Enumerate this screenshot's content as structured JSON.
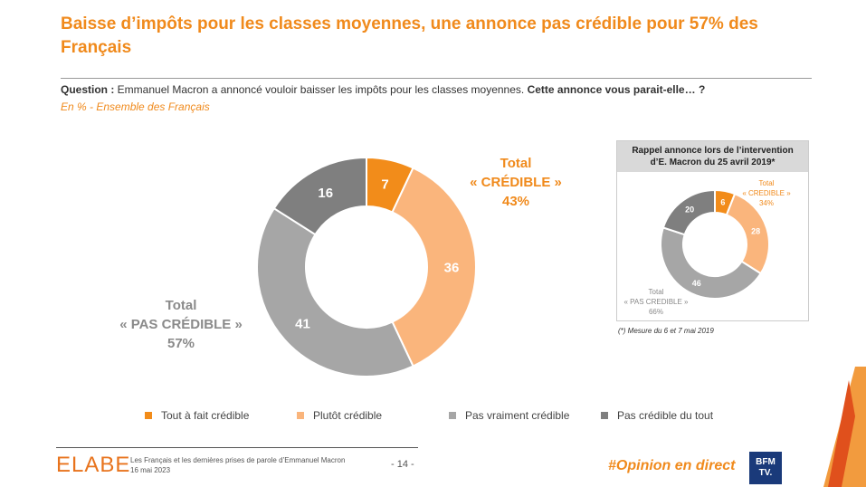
{
  "title": "Baisse d’impôts pour les classes moyennes, une annonce pas crédible pour 57% des Français",
  "question": {
    "label": "Question :",
    "text": " Emmanuel Macron a annoncé vouloir baisser les impôts pour les classes moyennes. ",
    "bold": "Cette annonce vous parait-elle… ?"
  },
  "subtitle": "En % - Ensemble des Français",
  "chart_data": [
    {
      "type": "pie",
      "variant": "donut",
      "categories": [
        "Tout à fait crédible",
        "Plutôt crédible",
        "Pas vraiment crédible",
        "Pas crédible du tout"
      ],
      "values": [
        7,
        36,
        41,
        16
      ],
      "colors": [
        "#f28c1a",
        "#fab57c",
        "#a6a6a6",
        "#7f7f7f"
      ],
      "annotations": {
        "credible": [
          "Total",
          "« CRÉDIBLE »",
          "43%"
        ],
        "pas_credible": [
          "Total",
          "« PAS CRÉDIBLE »",
          "57%"
        ]
      },
      "legend": "bottom"
    },
    {
      "type": "pie",
      "variant": "donut",
      "title": [
        "Rappel annonce lors de l’intervention",
        "d’E. Macron du 25 avril 2019*"
      ],
      "categories": [
        "Tout à fait crédible",
        "Plutôt crédible",
        "Pas vraiment crédible",
        "Pas crédible du tout"
      ],
      "values": [
        6,
        28,
        46,
        20
      ],
      "colors": [
        "#f28c1a",
        "#fab57c",
        "#a6a6a6",
        "#7f7f7f"
      ],
      "annotations": {
        "credible": [
          "Total",
          "« CREDIBLE »",
          "34%"
        ],
        "pas_credible": [
          "Total",
          "« PAS CREDIBLE »",
          "66%"
        ]
      },
      "note": "(*) Mesure du 6 et 7 mai 2019"
    }
  ],
  "footer": {
    "logo": "ELABE",
    "line1": "Les Français et les dernières prises de parole d’Emmanuel Macron",
    "line2": "16 mai 2023",
    "page": "- 14 -",
    "hashtag": "#Opinion en direct",
    "bfm": "BFM TV."
  }
}
